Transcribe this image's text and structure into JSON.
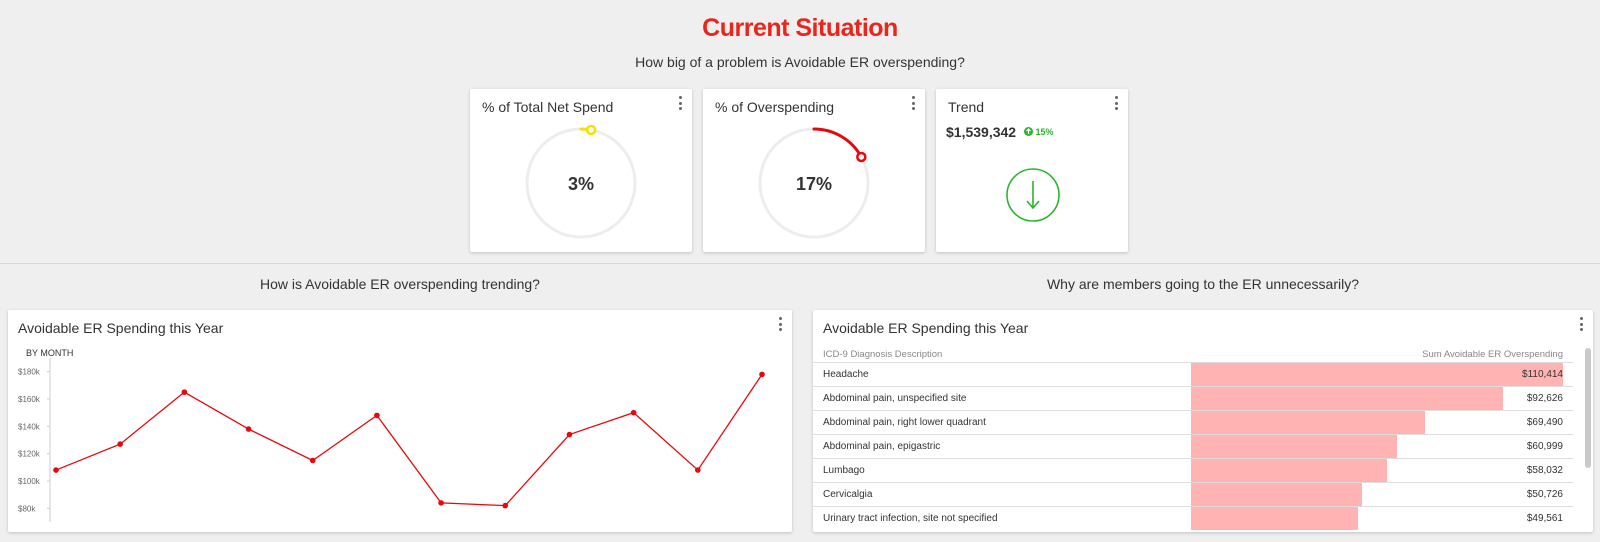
{
  "page": {
    "title": "Current Situation",
    "question_top": "How big of a problem is Avoidable ER overspending?",
    "question_left": "How is Avoidable ER overspending trending?",
    "question_right": "Why are members going to the ER unnecessarily?"
  },
  "kpis": {
    "net_spend": {
      "title": "% of Total Net Spend",
      "value_label": "3%",
      "fraction": 0.03,
      "color": "#f5e200"
    },
    "overspending": {
      "title": "% of Overspending",
      "value_label": "17%",
      "fraction": 0.17,
      "color": "#e8070a"
    },
    "trend": {
      "title": "Trend",
      "amount": "$1,539,342",
      "change": "15%",
      "color": "#2bb52b",
      "icon": "arrow-down-icon"
    }
  },
  "line_card": {
    "title": "Avoidable ER Spending this Year",
    "subtitle": "BY MONTH"
  },
  "chart_data": {
    "type": "line",
    "title": "Avoidable ER Spending this Year",
    "subtitle": "BY MONTH",
    "y_ticks": [
      "$80k",
      "$100k",
      "$120k",
      "$140k",
      "$160k",
      "$180k"
    ],
    "ylim": [
      70000,
      190000
    ],
    "values": [
      108000,
      127000,
      165000,
      138000,
      115000,
      148000,
      84000,
      82000,
      134000,
      150000,
      108000,
      178000
    ],
    "color": "#e8070a"
  },
  "table_card": {
    "title": "Avoidable ER Spending this Year",
    "col1": "ICD-9 Diagnosis Description",
    "col2": "Sum Avoidable ER Overspending",
    "max_value": 110414,
    "bar_color": "#ffb3b3",
    "rows": [
      {
        "label": "Headache",
        "value_label": "$110,414",
        "value": 110414
      },
      {
        "label": "Abdominal pain, unspecified site",
        "value_label": "$92,626",
        "value": 92626
      },
      {
        "label": "Abdominal pain, right lower quadrant",
        "value_label": "$69,490",
        "value": 69490
      },
      {
        "label": "Abdominal pain, epigastric",
        "value_label": "$60,999",
        "value": 60999
      },
      {
        "label": "Lumbago",
        "value_label": "$58,032",
        "value": 58032
      },
      {
        "label": "Cervicalgia",
        "value_label": "$50,726",
        "value": 50726
      },
      {
        "label": "Urinary tract infection, site not specified",
        "value_label": "$49,561",
        "value": 49561
      }
    ]
  }
}
